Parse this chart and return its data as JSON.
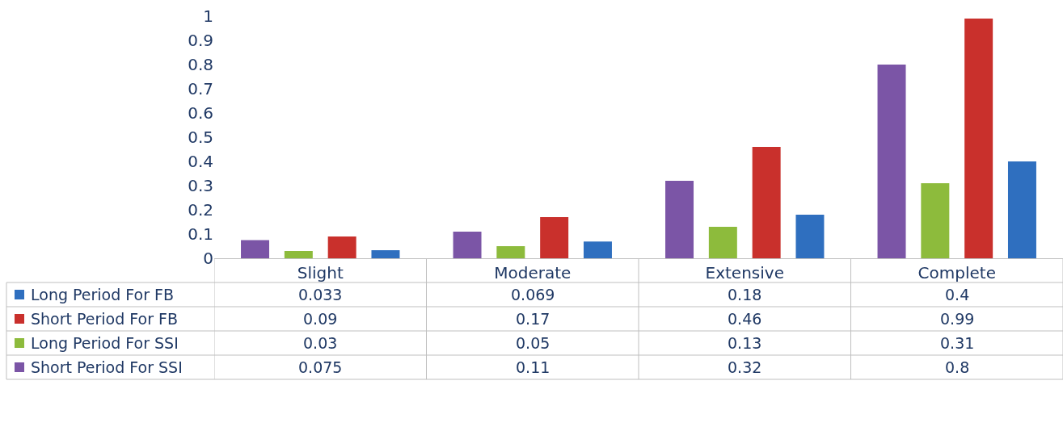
{
  "chart_data": {
    "type": "bar",
    "categories": [
      "Slight",
      "Moderate",
      "Extensive",
      "Complete"
    ],
    "series": [
      {
        "name": "Short Period For SSI",
        "color": "#7b55a6",
        "values": [
          0.075,
          0.11,
          0.32,
          0.8
        ]
      },
      {
        "name": "Long Period For SSI",
        "color": "#8dbb3c",
        "values": [
          0.03,
          0.05,
          0.13,
          0.31
        ]
      },
      {
        "name": "Short Period For FB",
        "color": "#c9302c",
        "values": [
          0.09,
          0.17,
          0.46,
          0.99
        ]
      },
      {
        "name": "Long Period For FB",
        "color": "#2f6fbf",
        "values": [
          0.033,
          0.069,
          0.18,
          0.4
        ]
      }
    ],
    "ylim": [
      0,
      1
    ],
    "yticks": [
      0,
      0.1,
      0.2,
      0.3,
      0.4,
      0.5,
      0.6,
      0.7,
      0.8,
      0.9,
      1
    ],
    "legend": "bottom left",
    "data_labels": true
  }
}
